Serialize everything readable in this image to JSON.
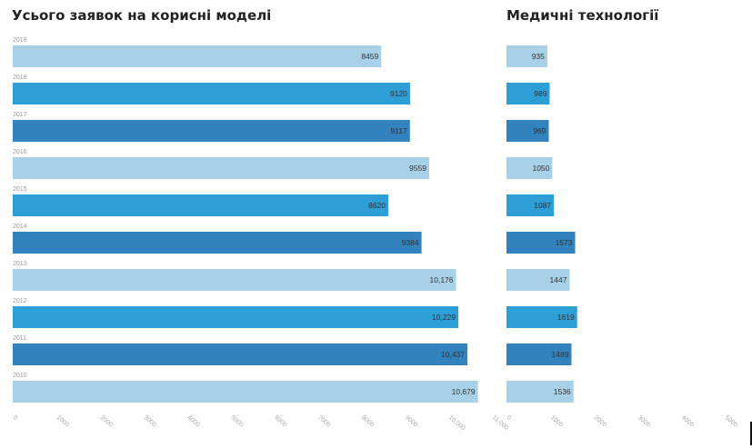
{
  "chart_data": [
    {
      "type": "bar",
      "orientation": "horizontal",
      "title": "Усього заявок на корисні моделі",
      "categories": [
        "2019",
        "2018",
        "2017",
        "2016",
        "2015",
        "2014",
        "2013",
        "2012",
        "2011",
        "2010"
      ],
      "values": [
        8459,
        9120,
        9117,
        9559,
        8620,
        9384,
        10176,
        10229,
        10437,
        10679
      ],
      "value_labels": [
        "8459",
        "9120",
        "9117",
        "9559",
        "8620",
        "9384",
        "10,176",
        "10,229",
        "10,437",
        "10,679"
      ],
      "xlim": [
        0,
        11000
      ],
      "x_ticks": [
        "0",
        "1000",
        "2000",
        "3000",
        "4000",
        "5000",
        "6000",
        "7000",
        "8000",
        "9000",
        "10,000",
        "11,000"
      ]
    },
    {
      "type": "bar",
      "orientation": "horizontal",
      "title": "Медичні технології",
      "categories": [
        "2019",
        "2018",
        "2017",
        "2016",
        "2015",
        "2014",
        "2013",
        "2012",
        "2011",
        "2010"
      ],
      "values": [
        935,
        989,
        969,
        1050,
        1087,
        1573,
        1447,
        1619,
        1489,
        1536
      ],
      "value_labels": [
        "935",
        "989",
        "969",
        "1050",
        "1087",
        "1573",
        "1447",
        "1619",
        "1489",
        "1536"
      ],
      "xlim": [
        0,
        5000
      ],
      "x_ticks": [
        "0",
        "1000",
        "2000",
        "3000",
        "4000",
        "5000"
      ]
    }
  ],
  "colors": [
    "#a8d0e6",
    "#2e9ed6",
    "#3182bd"
  ]
}
